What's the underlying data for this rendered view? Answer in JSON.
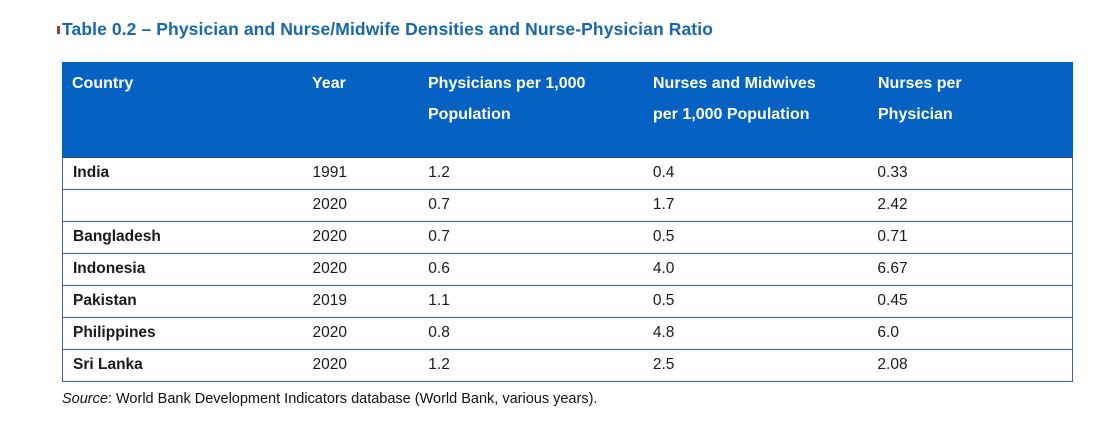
{
  "caption": "Table 0.2 – Physician and Nurse/Midwife Densities and Nurse-Physician Ratio",
  "table": {
    "columns": [
      "Country",
      "Year",
      "Physicians per 1,000 Population",
      "Nurses and Midwives per 1,000 Population",
      "Nurses per Physician"
    ],
    "rows": [
      {
        "country": "India",
        "year": "1991",
        "physicians": "1.2",
        "nurses": "0.4",
        "ratio": "0.33"
      },
      {
        "country": "",
        "year": "2020",
        "physicians": "0.7",
        "nurses": "1.7",
        "ratio": "2.42"
      },
      {
        "country": "Bangladesh",
        "year": "2020",
        "physicians": "0.7",
        "nurses": "0.5",
        "ratio": "0.71"
      },
      {
        "country": "Indonesia",
        "year": "2020",
        "physicians": "0.6",
        "nurses": "4.0",
        "ratio": "6.67"
      },
      {
        "country": "Pakistan",
        "year": "2019",
        "physicians": "1.1",
        "nurses": "0.5",
        "ratio": "0.45"
      },
      {
        "country": "Philippines",
        "year": "2020",
        "physicians": "0.8",
        "nurses": "4.8",
        "ratio": "6.0"
      },
      {
        "country": "Sri Lanka",
        "year": "2020",
        "physicians": "1.2",
        "nurses": "2.5",
        "ratio": "2.08"
      }
    ]
  },
  "source": {
    "label": "Source",
    "text": ": World Bank Development Indicators database (World Bank, various years)."
  },
  "colors": {
    "header_bg": "#0561c2",
    "caption_text": "#1668ac",
    "table_border": "#4161ae",
    "revision_marker": "#a0412d",
    "header_text": "#ffffff",
    "body_text": "#1a1a1a"
  }
}
